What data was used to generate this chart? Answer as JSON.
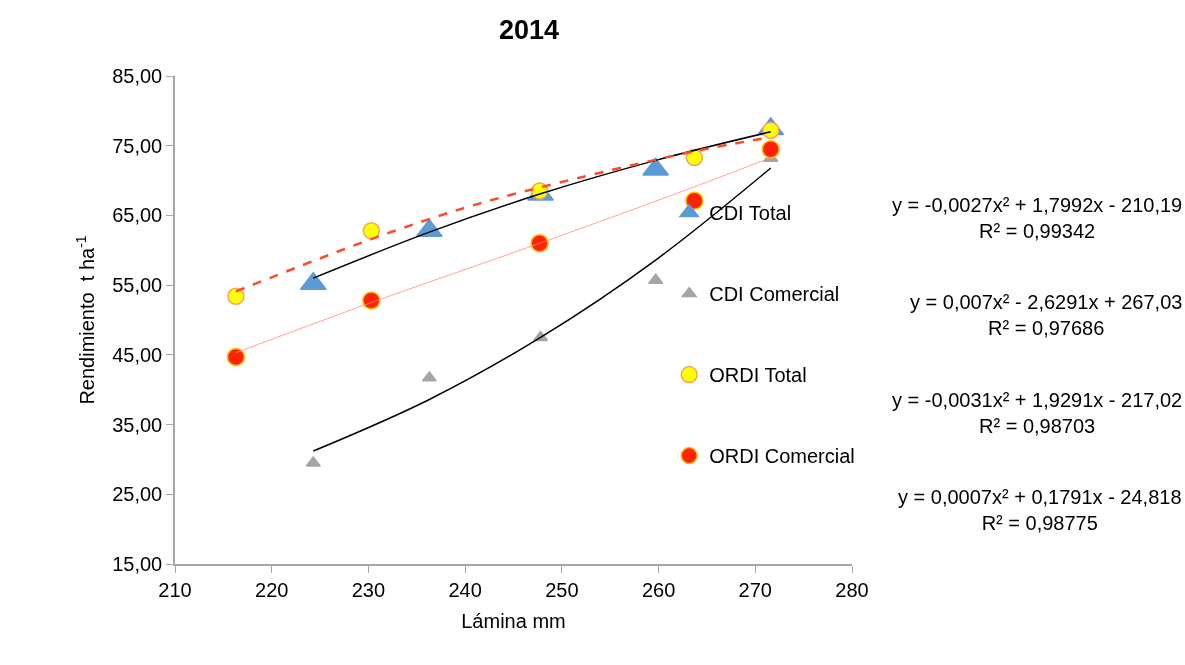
{
  "chart_data": {
    "type": "scatter",
    "title": "2014",
    "xlabel": "Lámina mm",
    "ylabel": "Rendimiento  t ha$^{-1}$",
    "xlim": [
      210,
      280
    ],
    "xticks": [
      210,
      220,
      230,
      240,
      250,
      260,
      270,
      280
    ],
    "ylim": [
      15,
      85
    ],
    "yticks": [
      {
        "value": 15,
        "label": "15,00"
      },
      {
        "value": 25,
        "label": "25,00"
      },
      {
        "value": 35,
        "label": "35,00"
      },
      {
        "value": 45,
        "label": "45,00"
      },
      {
        "value": 55,
        "label": "55,00"
      },
      {
        "value": 65,
        "label": "65,00"
      },
      {
        "value": 75,
        "label": "75,00"
      },
      {
        "value": 85,
        "label": "85,00"
      }
    ],
    "grid": false,
    "legend": "right",
    "series": [
      {
        "name": "CDI Total",
        "marker": "triangle",
        "color": "#5b9bd5",
        "x": [
          224.3,
          236.3,
          247.8,
          259.7,
          271.6
        ],
        "values": [
          55.2,
          62.8,
          68.0,
          71.6,
          77.4
        ]
      },
      {
        "name": "CDI Comercial",
        "marker": "triangle",
        "color": "#a5a5a5",
        "x": [
          224.3,
          236.3,
          247.8,
          259.7,
          271.6
        ],
        "values": [
          29.5,
          41.7,
          47.5,
          55.7,
          73.2
        ]
      },
      {
        "name": "ORDI Total",
        "marker": "circle",
        "color": "#ffff00",
        "x": [
          216.3,
          230.3,
          247.7,
          263.7,
          271.6
        ],
        "values": [
          53.4,
          62.8,
          68.5,
          73.3,
          77.2
        ]
      },
      {
        "name": "ORDI Comercial",
        "marker": "circle",
        "color": "#ff2200",
        "x": [
          216.3,
          230.3,
          247.7,
          263.7,
          271.6
        ],
        "values": [
          44.7,
          52.8,
          61.0,
          67.1,
          74.5
        ]
      },
      {
        "type": "line",
        "color": "#000000",
        "line_style": "solid",
        "marker": "none",
        "x": [
          224.3,
          236.3,
          247.8,
          259.7,
          271.6
        ],
        "values": [
          56.0,
          62.6,
          68.1,
          72.9,
          77.0
        ]
      },
      {
        "type": "line",
        "color": "#000000",
        "line_style": "solid",
        "marker": "none",
        "x": [
          224.3,
          236.3,
          247.8,
          259.7,
          271.6
        ],
        "values": [
          31.2,
          38.6,
          47.5,
          58.6,
          71.8
        ]
      },
      {
        "type": "line",
        "color": "#ff4a2a",
        "line_style": "dashed",
        "marker": "none",
        "x": [
          216.3,
          230.3,
          240,
          247.7,
          263.7,
          271.6
        ],
        "values": [
          54.1,
          61.6,
          66.1,
          69.0,
          74.2,
          76.2
        ]
      },
      {
        "type": "line",
        "color": "#ff8c7a",
        "line_style": "solid",
        "marker": "none",
        "x": [
          216.3,
          230.3,
          247.7,
          263.7,
          271.6
        ],
        "values": [
          45.3,
          52.5,
          61.0,
          69.1,
          73.3
        ]
      }
    ],
    "annotations": [
      "y = -0,0027x² + 1,7992x - 210,19\nR² = 0,99342",
      "y = 0,007x² - 2,6291x + 267,03\nR² = 0,97686",
      "y = -0,0031x² + 1,9291x - 217,02\nR² = 0,98703",
      "y = 0,0007x² + 0,1791x - 24,818\nR² = 0,98775"
    ]
  }
}
